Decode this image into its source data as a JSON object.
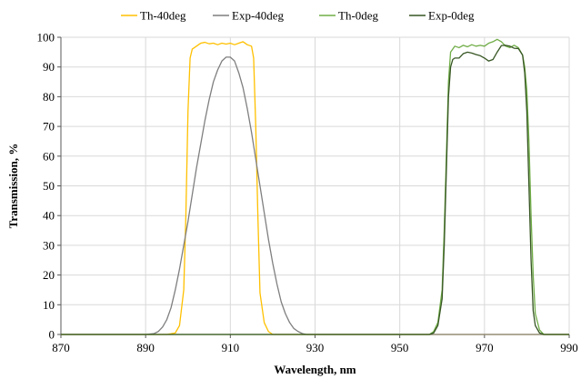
{
  "chart_data": {
    "type": "line",
    "title": "",
    "xlabel": "Wavelength, nm",
    "ylabel": "Transmission, %",
    "xlim": [
      870,
      990
    ],
    "ylim": [
      0,
      100
    ],
    "xticks": [
      870,
      890,
      910,
      930,
      950,
      970,
      990
    ],
    "yticks": [
      0,
      10,
      20,
      30,
      40,
      50,
      60,
      70,
      80,
      90,
      100
    ],
    "grid": true,
    "legend_position": "top",
    "series": [
      {
        "name": "Th-40deg",
        "color": "#FFC000",
        "points": [
          [
            870,
            0
          ],
          [
            895,
            0
          ],
          [
            897,
            0.5
          ],
          [
            898,
            3
          ],
          [
            899,
            15
          ],
          [
            899.5,
            40
          ],
          [
            900,
            75
          ],
          [
            900.5,
            93
          ],
          [
            901,
            96
          ],
          [
            902,
            97
          ],
          [
            903,
            98
          ],
          [
            904,
            98.3
          ],
          [
            905,
            97.8
          ],
          [
            906,
            98
          ],
          [
            907,
            97.5
          ],
          [
            908,
            98
          ],
          [
            909,
            97.7
          ],
          [
            910,
            98
          ],
          [
            911,
            97.5
          ],
          [
            912,
            98
          ],
          [
            913,
            98.5
          ],
          [
            914,
            97.5
          ],
          [
            915,
            97
          ],
          [
            915.5,
            93
          ],
          [
            916,
            70
          ],
          [
            916.5,
            40
          ],
          [
            917,
            14
          ],
          [
            918,
            4
          ],
          [
            919,
            1
          ],
          [
            920,
            0
          ],
          [
            990,
            0
          ]
        ]
      },
      {
        "name": "Exp-40deg",
        "color": "#7F7F7F",
        "points": [
          [
            870,
            0
          ],
          [
            890,
            0
          ],
          [
            892,
            0.3
          ],
          [
            893,
            1
          ],
          [
            894,
            2.5
          ],
          [
            895,
            5
          ],
          [
            896,
            9
          ],
          [
            897,
            15
          ],
          [
            898,
            22
          ],
          [
            899,
            30
          ],
          [
            900,
            38
          ],
          [
            901,
            47
          ],
          [
            902,
            56
          ],
          [
            903,
            64
          ],
          [
            904,
            72
          ],
          [
            905,
            79
          ],
          [
            906,
            85
          ],
          [
            907,
            89
          ],
          [
            908,
            92
          ],
          [
            909,
            93.3
          ],
          [
            910,
            93.3
          ],
          [
            911,
            92
          ],
          [
            912,
            88
          ],
          [
            913,
            83
          ],
          [
            914,
            76
          ],
          [
            915,
            68
          ],
          [
            916,
            59
          ],
          [
            917,
            50
          ],
          [
            918,
            41
          ],
          [
            919,
            32
          ],
          [
            920,
            24
          ],
          [
            921,
            17
          ],
          [
            922,
            11
          ],
          [
            923,
            7
          ],
          [
            924,
            4
          ],
          [
            925,
            2
          ],
          [
            926,
            1
          ],
          [
            927,
            0.3
          ],
          [
            928,
            0
          ],
          [
            990,
            0
          ]
        ]
      },
      {
        "name": "Th-0deg",
        "color": "#70AD47",
        "points": [
          [
            870,
            0
          ],
          [
            957,
            0
          ],
          [
            958,
            1
          ],
          [
            959,
            4
          ],
          [
            960,
            15
          ],
          [
            960.5,
            35
          ],
          [
            961,
            60
          ],
          [
            961.5,
            85
          ],
          [
            962,
            95
          ],
          [
            963,
            97
          ],
          [
            964,
            96.5
          ],
          [
            965,
            97.3
          ],
          [
            966,
            96.8
          ],
          [
            967,
            97.5
          ],
          [
            968,
            97
          ],
          [
            969,
            97.3
          ],
          [
            970,
            97
          ],
          [
            971,
            98
          ],
          [
            972,
            98.5
          ],
          [
            973,
            99.3
          ],
          [
            974,
            98.5
          ],
          [
            975,
            97
          ],
          [
            976,
            96.5
          ],
          [
            977,
            97.3
          ],
          [
            978,
            96.5
          ],
          [
            979,
            94
          ],
          [
            979.5,
            90
          ],
          [
            980,
            82
          ],
          [
            980.5,
            65
          ],
          [
            981,
            40
          ],
          [
            981.5,
            20
          ],
          [
            982,
            7
          ],
          [
            983,
            1.5
          ],
          [
            984,
            0
          ],
          [
            990,
            0
          ]
        ]
      },
      {
        "name": "Exp-0deg",
        "color": "#375623",
        "points": [
          [
            870,
            0
          ],
          [
            957,
            0
          ],
          [
            958,
            0.5
          ],
          [
            959,
            3
          ],
          [
            960,
            12
          ],
          [
            960.5,
            30
          ],
          [
            961,
            55
          ],
          [
            961.5,
            80
          ],
          [
            962,
            90
          ],
          [
            962.5,
            92.5
          ],
          [
            963,
            93
          ],
          [
            964,
            93
          ],
          [
            965,
            94.5
          ],
          [
            966,
            95
          ],
          [
            967,
            94.7
          ],
          [
            968,
            94.2
          ],
          [
            969,
            93.8
          ],
          [
            970,
            93
          ],
          [
            971,
            92
          ],
          [
            972,
            92.5
          ],
          [
            973,
            95
          ],
          [
            974,
            97.2
          ],
          [
            975,
            97.3
          ],
          [
            976,
            97
          ],
          [
            977,
            96.3
          ],
          [
            978,
            96.2
          ],
          [
            979,
            94
          ],
          [
            979.5,
            88
          ],
          [
            980,
            75
          ],
          [
            980.5,
            50
          ],
          [
            981,
            25
          ],
          [
            981.5,
            8
          ],
          [
            982,
            3
          ],
          [
            983,
            0.5
          ],
          [
            984,
            0
          ],
          [
            990,
            0
          ]
        ]
      }
    ]
  }
}
